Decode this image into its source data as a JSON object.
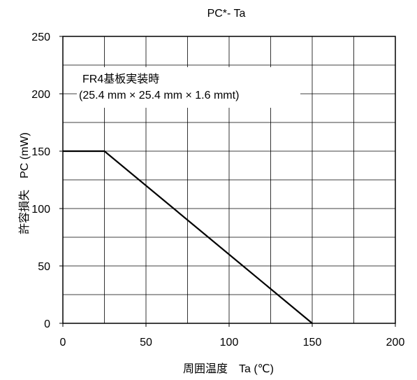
{
  "chart_data": {
    "type": "line",
    "title": "PC*- Ta",
    "xlabel": "周囲温度　Ta (℃)",
    "ylabel": "許容損失　PC (mW)",
    "xlim": [
      0,
      200
    ],
    "ylim": [
      0,
      250
    ],
    "xticks": [
      0,
      50,
      100,
      150,
      200
    ],
    "yticks": [
      0,
      50,
      100,
      150,
      200,
      250
    ],
    "x_gridlines": [
      0,
      25,
      50,
      75,
      100,
      125,
      150,
      175,
      200
    ],
    "y_gridlines": [
      0,
      25,
      50,
      75,
      100,
      125,
      150,
      175,
      200,
      225,
      250
    ],
    "grid": true,
    "series": [
      {
        "x": [
          0,
          25,
          150
        ],
        "y": [
          150,
          150,
          0
        ]
      }
    ],
    "annotation": {
      "line1": "FR4基板実装時",
      "line2": "(25.4 mm × 25.4 mm × 1.6 mmt)"
    }
  }
}
